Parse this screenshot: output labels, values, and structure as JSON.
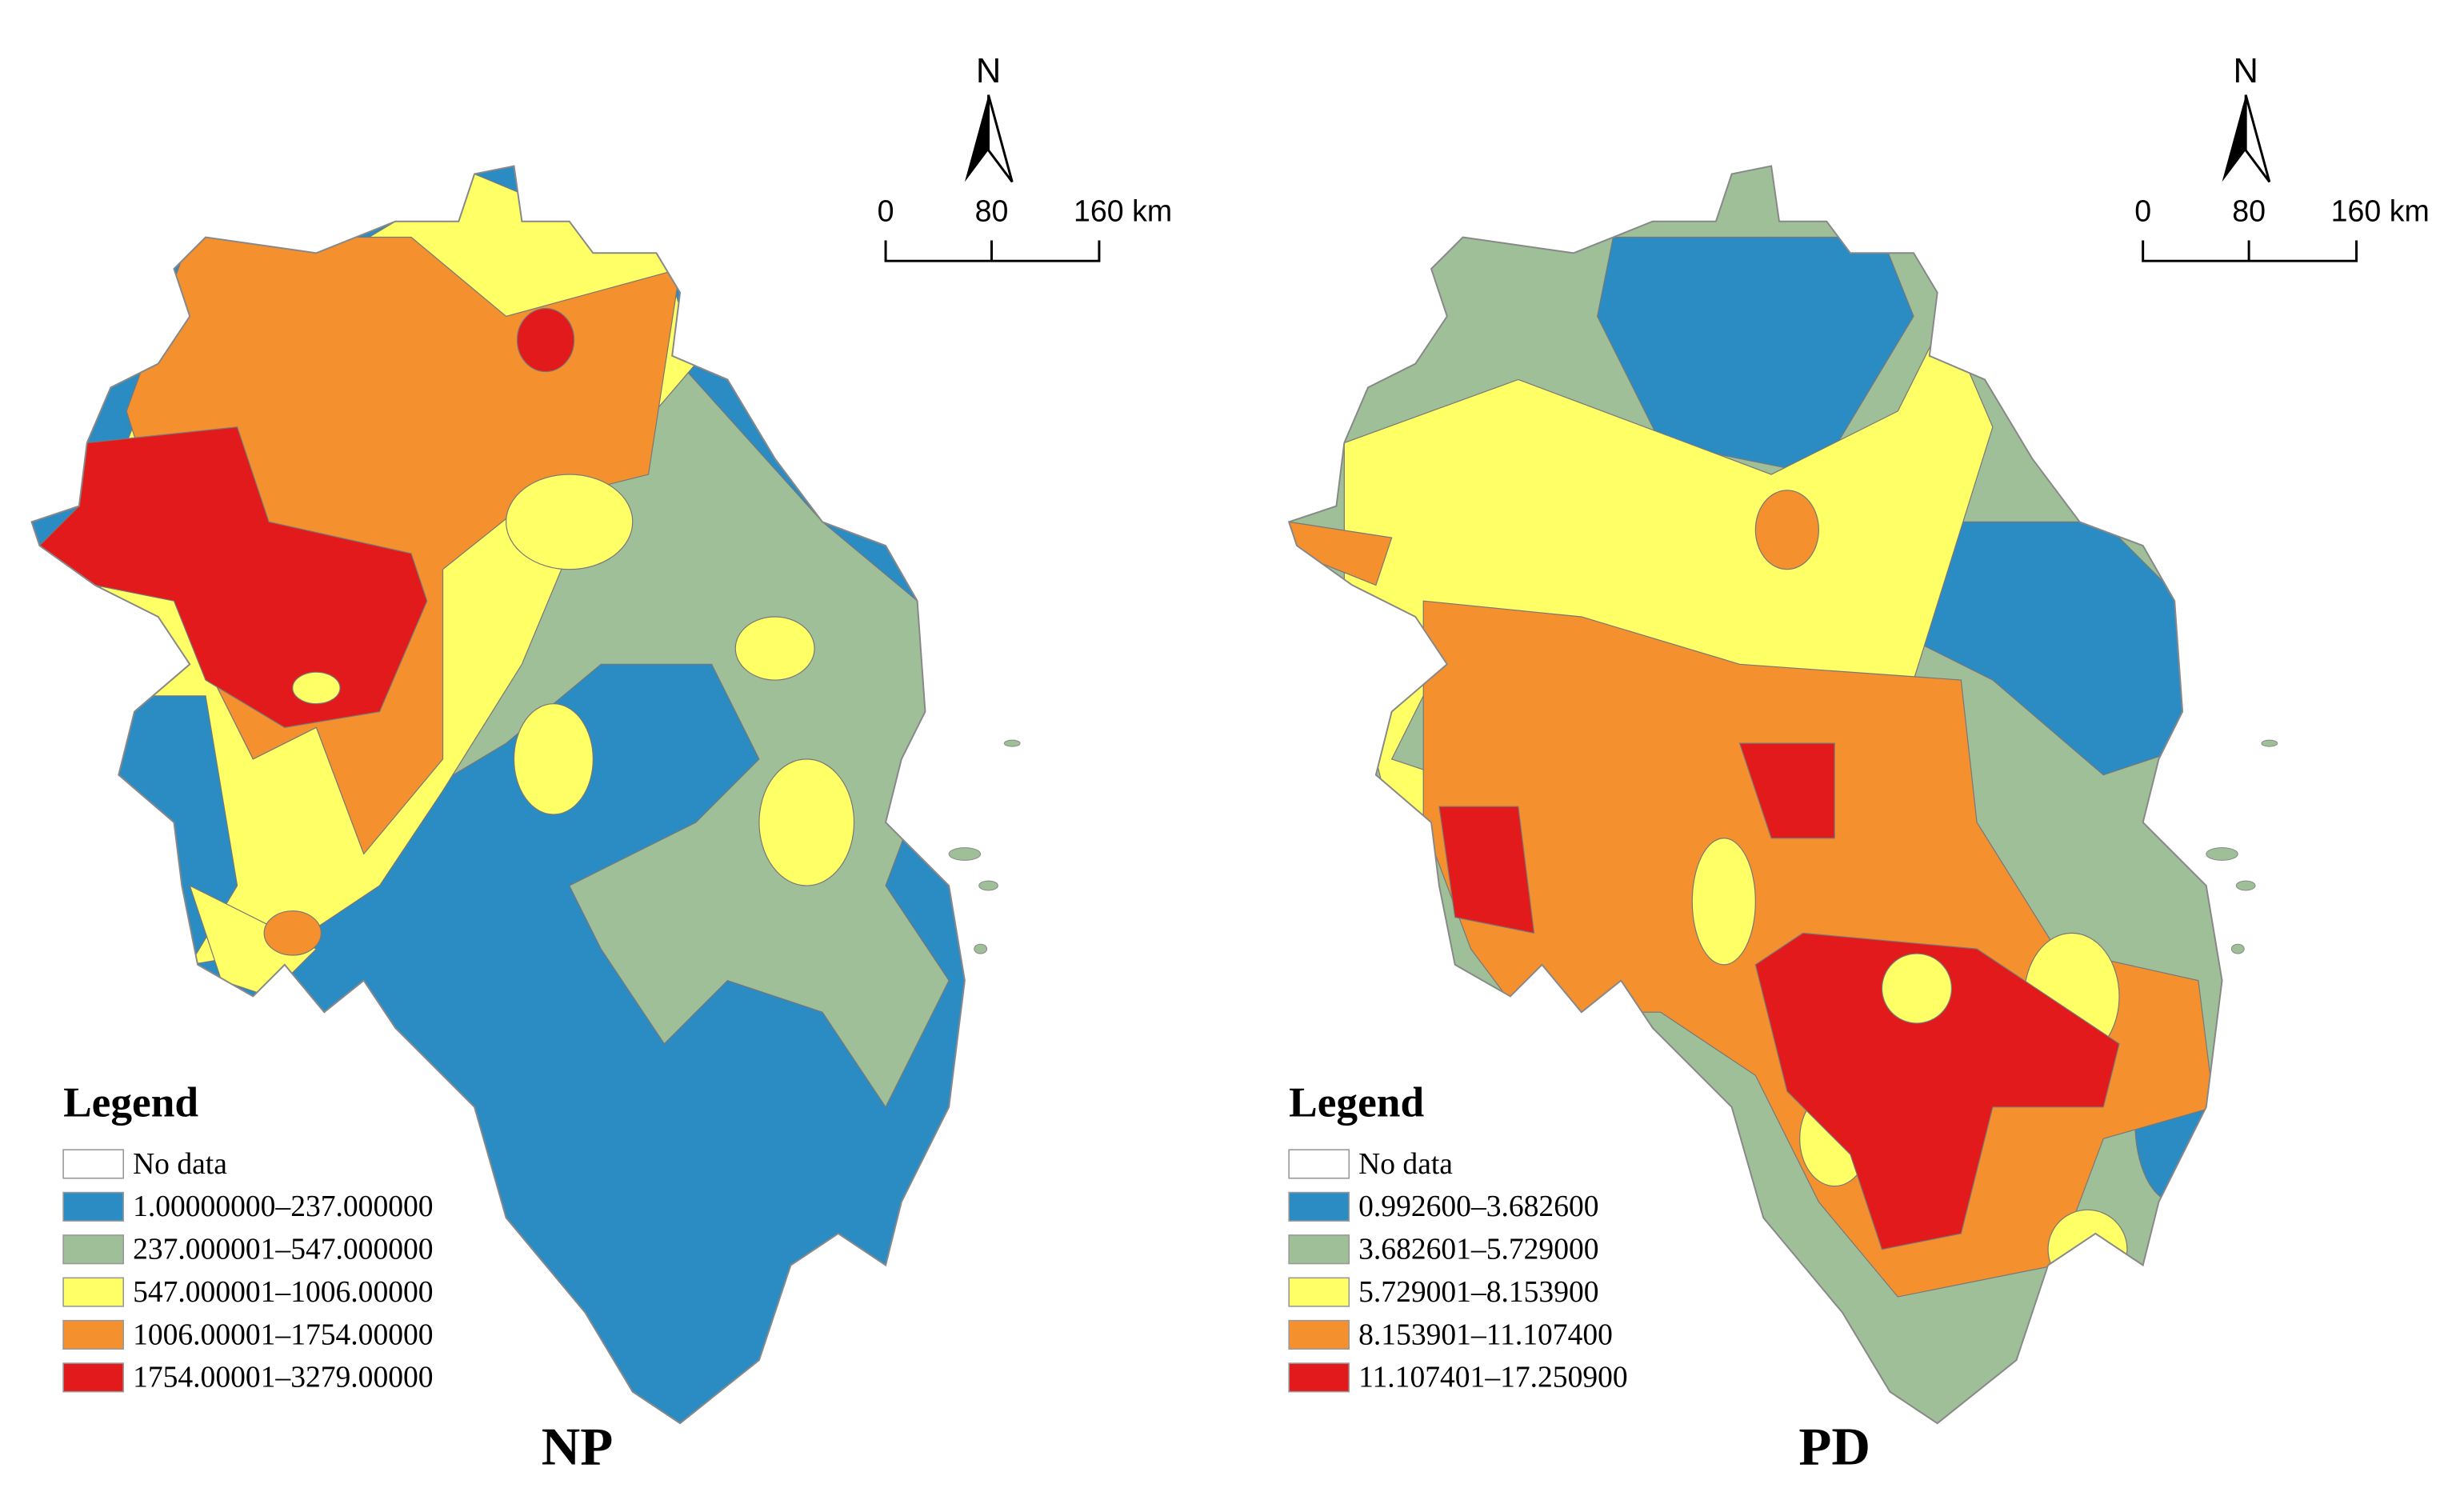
{
  "panels": [
    {
      "title": "NP",
      "north": "N",
      "scale": {
        "labels": [
          "0",
          "80",
          "160 km"
        ]
      },
      "legend": {
        "title": "Legend",
        "items": [
          {
            "label": "No data",
            "color": "#ffffff"
          },
          {
            "label": "1.00000000–237.000000",
            "color": "#2b8cc4"
          },
          {
            "label": "237.000001–547.000000",
            "color": "#9ebf98"
          },
          {
            "label": "547.000001–1006.00000",
            "color": "#ffff66"
          },
          {
            "label": "1006.00001–1754.00000",
            "color": "#f5902e"
          },
          {
            "label": "1754.00001–3279.00000",
            "color": "#e31a1c"
          }
        ]
      }
    },
    {
      "title": "PD",
      "north": "N",
      "scale": {
        "labels": [
          "0",
          "80",
          "160 km"
        ]
      },
      "legend": {
        "title": "Legend",
        "items": [
          {
            "label": "No data",
            "color": "#ffffff"
          },
          {
            "label": "0.992600–3.682600",
            "color": "#2b8cc4"
          },
          {
            "label": "3.682601–5.729000",
            "color": "#9ebf98"
          },
          {
            "label": "5.729001–8.153900",
            "color": "#ffff66"
          },
          {
            "label": "8.153901–11.107400",
            "color": "#f5902e"
          },
          {
            "label": "11.107401–17.250900",
            "color": "#e31a1c"
          }
        ]
      }
    }
  ]
}
